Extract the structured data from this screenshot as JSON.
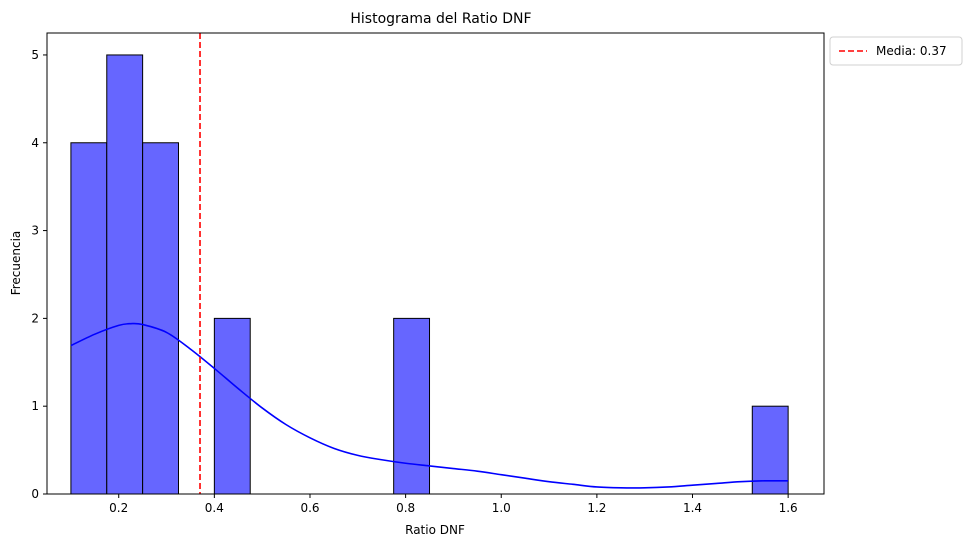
{
  "chart_data": {
    "type": "bar",
    "title": "Histograma del Ratio DNF",
    "xlabel": "Ratio DNF",
    "ylabel": "Frecuencia",
    "xlim": [
      0.05,
      1.675
    ],
    "ylim": [
      0,
      5.25
    ],
    "x_ticks": [
      "0.2",
      "0.4",
      "0.6",
      "0.8",
      "1.0",
      "1.2",
      "1.4",
      "1.6"
    ],
    "x_tick_values": [
      0.2,
      0.4,
      0.6,
      0.8,
      1.0,
      1.2,
      1.4,
      1.6
    ],
    "y_ticks": [
      "0",
      "1",
      "2",
      "3",
      "4",
      "5"
    ],
    "y_tick_values": [
      0,
      1,
      2,
      3,
      4,
      5
    ],
    "grid": false,
    "bins": [
      {
        "x0": 0.1,
        "x1": 0.175,
        "count": 4
      },
      {
        "x0": 0.175,
        "x1": 0.25,
        "count": 5
      },
      {
        "x0": 0.25,
        "x1": 0.325,
        "count": 4
      },
      {
        "x0": 0.325,
        "x1": 0.4,
        "count": 0
      },
      {
        "x0": 0.4,
        "x1": 0.475,
        "count": 2
      },
      {
        "x0": 0.475,
        "x1": 0.55,
        "count": 0
      },
      {
        "x0": 0.55,
        "x1": 0.625,
        "count": 0
      },
      {
        "x0": 0.625,
        "x1": 0.7,
        "count": 0
      },
      {
        "x0": 0.7,
        "x1": 0.775,
        "count": 0
      },
      {
        "x0": 0.775,
        "x1": 0.85,
        "count": 2
      },
      {
        "x0": 0.85,
        "x1": 0.925,
        "count": 0
      },
      {
        "x0": 0.925,
        "x1": 1.0,
        "count": 0
      },
      {
        "x0": 1.0,
        "x1": 1.075,
        "count": 0
      },
      {
        "x0": 1.075,
        "x1": 1.15,
        "count": 0
      },
      {
        "x0": 1.15,
        "x1": 1.225,
        "count": 0
      },
      {
        "x0": 1.225,
        "x1": 1.3,
        "count": 0
      },
      {
        "x0": 1.3,
        "x1": 1.375,
        "count": 0
      },
      {
        "x0": 1.375,
        "x1": 1.45,
        "count": 0
      },
      {
        "x0": 1.45,
        "x1": 1.525,
        "count": 0
      },
      {
        "x0": 1.525,
        "x1": 1.6,
        "count": 1
      }
    ],
    "kde": {
      "x": [
        0.1,
        0.15,
        0.2,
        0.225,
        0.25,
        0.3,
        0.35,
        0.4,
        0.45,
        0.5,
        0.55,
        0.6,
        0.65,
        0.7,
        0.75,
        0.8,
        0.85,
        0.9,
        0.95,
        1.0,
        1.05,
        1.1,
        1.15,
        1.2,
        1.25,
        1.3,
        1.35,
        1.4,
        1.45,
        1.5,
        1.55,
        1.6
      ],
      "y": [
        1.69,
        1.82,
        1.92,
        1.94,
        1.93,
        1.84,
        1.65,
        1.43,
        1.2,
        0.98,
        0.79,
        0.64,
        0.52,
        0.44,
        0.39,
        0.35,
        0.32,
        0.29,
        0.26,
        0.22,
        0.18,
        0.14,
        0.11,
        0.08,
        0.07,
        0.07,
        0.08,
        0.1,
        0.12,
        0.14,
        0.15,
        0.15
      ]
    },
    "mean_line": {
      "x": 0.37,
      "label": "Media: 0.37"
    },
    "legend_position": "outside-top-right",
    "colors": {
      "bar_fill": "#6666ff",
      "bar_edge": "#000000",
      "kde": "#0000ff",
      "mean": "#ff0000"
    }
  }
}
